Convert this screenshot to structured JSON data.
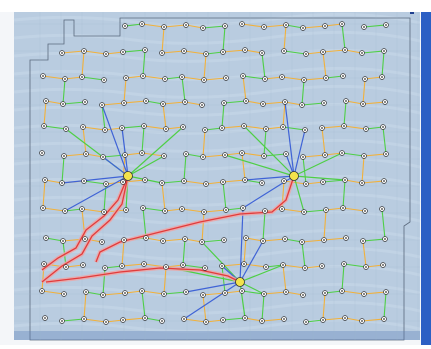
{
  "map": {
    "header_text": "",
    "footer_text": "",
    "colors": {
      "background": "#b9cce0",
      "boundary": "#5a6a7d",
      "grid_line": "#9fb4cb",
      "string_orange": "#f2b13a",
      "string_green": "#4ecf45",
      "string_blue": "#3f63d6",
      "export_red": "#e23b3b",
      "export_pink": "#f0a3a3",
      "substation_yellow": "#f3e24a",
      "turbine_dark": "#333333",
      "edge_blue": "#1c3fb0"
    },
    "row_labels": [
      "",
      "",
      "",
      "",
      "",
      "",
      "",
      "",
      "",
      "",
      ""
    ],
    "substations": [
      {
        "label": ""
      },
      {
        "label": ""
      },
      {
        "label": ""
      }
    ]
  }
}
